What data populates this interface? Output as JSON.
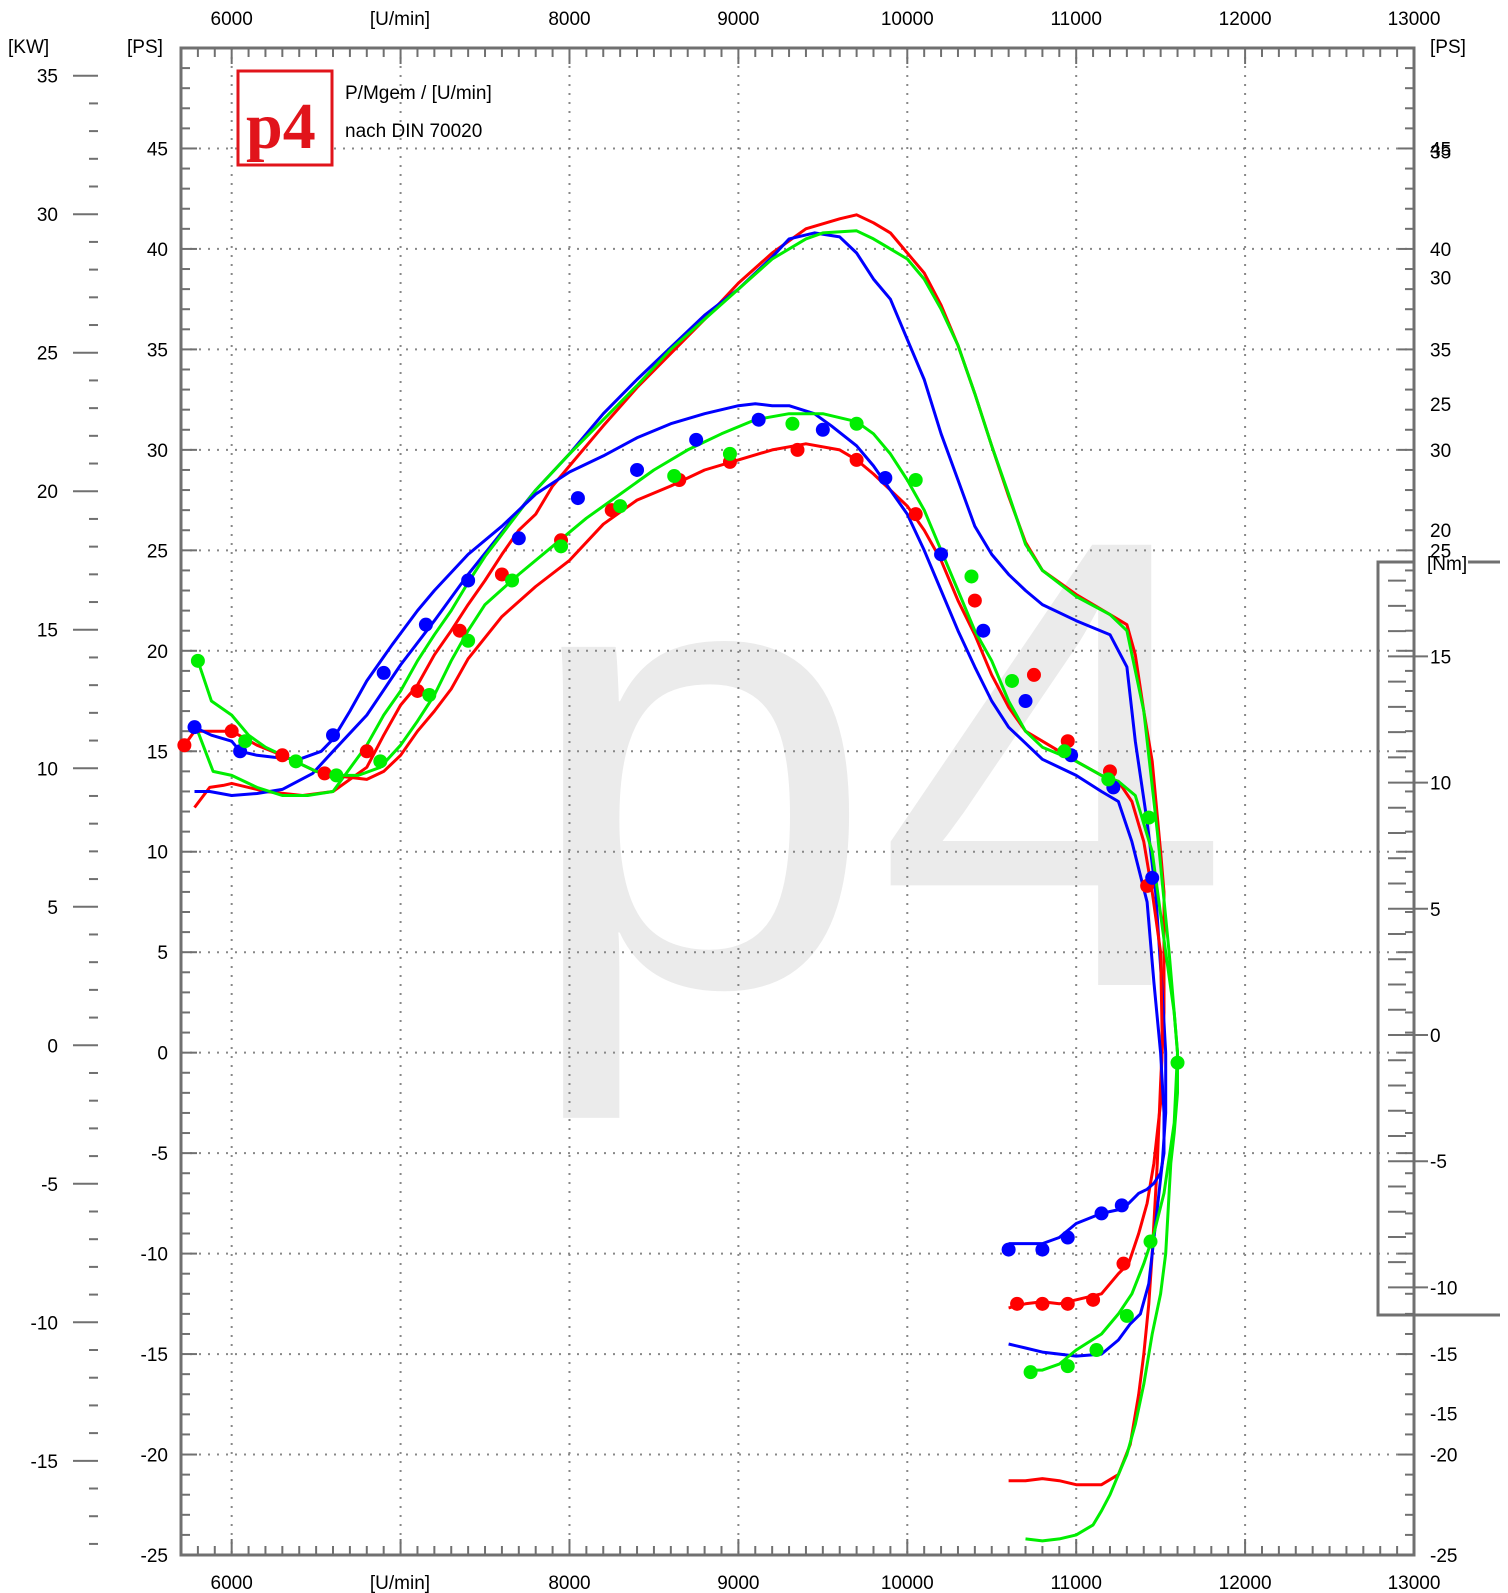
{
  "chart_data": {
    "type": "line",
    "title": "P/Mgem / [U/min]",
    "subtitle": "nach DIN 70020",
    "watermark": "p4",
    "logo": {
      "text": "p4",
      "color": "#e1141b"
    },
    "x_axis": {
      "label_top": "[U/min]",
      "label_bottom": "[U/min]",
      "range": [
        5700,
        13000
      ],
      "ticks": [
        6000,
        8000,
        9000,
        10000,
        11000,
        12000,
        13000
      ]
    },
    "y_axes": {
      "kw": {
        "label": "[KW]",
        "range": [
          -18.4,
          36
        ],
        "ticks": [
          35,
          30,
          25,
          20,
          15,
          10,
          5,
          0,
          -5,
          -10,
          -15
        ]
      },
      "ps_left": {
        "label": "[PS]",
        "range": [
          -25,
          50
        ],
        "ticks": [
          45,
          40,
          35,
          30,
          25,
          20,
          15,
          10,
          5,
          0,
          -5,
          -10,
          -15,
          -20,
          -25
        ]
      },
      "ps_right": {
        "label": "[PS]",
        "range": [
          -25,
          50
        ],
        "ticks": [
          45,
          40,
          35,
          30,
          25,
          20,
          15,
          10,
          5,
          0,
          -5,
          -10,
          -15,
          -20,
          -25
        ]
      },
      "nm": {
        "label": "[Nm]",
        "range": [
          -20.6,
          39.1
        ],
        "ticks": [
          35,
          30,
          25,
          20,
          15,
          10,
          5,
          0,
          -5,
          -10,
          -15
        ]
      }
    },
    "grid": true,
    "colors": {
      "red": "#ff0000",
      "blue": "#0000ff",
      "green": "#00ee00",
      "grid": "#888888",
      "frame": "#707070"
    },
    "series": [
      {
        "kind": "power",
        "color": "#ff0000",
        "x": [
          5780,
          5870,
          5950,
          6000,
          6200,
          6420,
          6600,
          6800,
          6900,
          7000,
          7100,
          7200,
          7300,
          7400,
          7500,
          7600,
          7700,
          7800,
          7900,
          8000,
          8200,
          8400,
          8600,
          8800,
          9000,
          9200,
          9400,
          9600,
          9700,
          9800,
          9900,
          10000,
          10100,
          10200,
          10300,
          10400,
          10500,
          10600,
          10700,
          10800,
          11000,
          11200,
          11300,
          11350,
          11400,
          11450,
          11500,
          11520,
          11520,
          11500,
          11480,
          11450,
          11430,
          11400,
          11370,
          11320,
          11250,
          11150,
          11000,
          10900,
          10800,
          10700,
          10600
        ],
        "y": [
          12.2,
          13.2,
          13.3,
          13.4,
          13.0,
          12.8,
          13.0,
          14.2,
          15.8,
          17.3,
          18.3,
          19.8,
          21.0,
          22.3,
          23.5,
          24.8,
          26.0,
          26.8,
          28.2,
          29.2,
          31.2,
          33.1,
          34.8,
          36.5,
          38.3,
          39.8,
          41.0,
          41.5,
          41.7,
          41.3,
          40.8,
          39.8,
          38.8,
          37.2,
          35.2,
          32.8,
          30.2,
          27.7,
          25.4,
          24.0,
          22.8,
          21.8,
          21.3,
          19.8,
          17.0,
          14.5,
          10.0,
          8.0,
          2.0,
          -1.5,
          -5.5,
          -10.0,
          -12.5,
          -15.0,
          -17.0,
          -19.5,
          -21.0,
          -21.5,
          -21.5,
          -21.3,
          -21.2,
          -21.3,
          -21.3
        ]
      },
      {
        "kind": "power",
        "color": "#0000ff",
        "x": [
          5780,
          5870,
          6000,
          6150,
          6300,
          6480,
          6600,
          6800,
          7000,
          7200,
          7400,
          7600,
          7800,
          8000,
          8200,
          8400,
          8600,
          8800,
          9000,
          9200,
          9300,
          9450,
          9600,
          9700,
          9800,
          9900,
          10000,
          10100,
          10200,
          10300,
          10400,
          10500,
          10600,
          10700,
          10800,
          11000,
          11200,
          11300,
          11350,
          11420,
          11470,
          11510,
          11530,
          11530,
          11510,
          11470,
          11430,
          11380,
          11320,
          11250,
          11150,
          11000,
          10900,
          10800,
          10700,
          10600
        ],
        "y": [
          13.0,
          13.0,
          12.8,
          12.9,
          13.1,
          13.9,
          15.0,
          16.8,
          19.3,
          21.5,
          23.8,
          25.9,
          28.0,
          29.8,
          31.8,
          33.5,
          35.1,
          36.7,
          38.0,
          39.6,
          40.5,
          40.8,
          40.6,
          39.8,
          38.5,
          37.5,
          35.5,
          33.5,
          30.8,
          28.5,
          26.2,
          24.8,
          23.8,
          23.0,
          22.3,
          21.5,
          20.8,
          19.2,
          15.5,
          11.5,
          8.0,
          3.0,
          0.0,
          -3.0,
          -5.5,
          -8.5,
          -11.5,
          -13.0,
          -13.5,
          -14.3,
          -15.0,
          -15.1,
          -15.0,
          -14.9,
          -14.7,
          -14.5
        ]
      },
      {
        "kind": "power",
        "color": "#00ee00",
        "x": [
          5790,
          5890,
          6000,
          6150,
          6300,
          6450,
          6600,
          6800,
          6900,
          7000,
          7100,
          7200,
          7300,
          7400,
          7500,
          7600,
          7800,
          8000,
          8200,
          8400,
          8600,
          8800,
          9000,
          9200,
          9400,
          9500,
          9700,
          9800,
          9900,
          10000,
          10100,
          10200,
          10300,
          10400,
          10500,
          10600,
          10700,
          10800,
          11000,
          11200,
          11300,
          11400,
          11480,
          11550,
          11580,
          11600,
          11600,
          11580,
          11560,
          11530,
          11500,
          11450,
          11400,
          11350,
          11300,
          11250,
          11200,
          11150,
          11100,
          11000,
          10900,
          10800,
          10700
        ],
        "y": [
          16.2,
          14.0,
          13.8,
          13.2,
          12.8,
          12.8,
          13.0,
          15.3,
          16.8,
          18.0,
          19.5,
          20.8,
          22.0,
          23.4,
          24.7,
          25.8,
          28.0,
          29.8,
          31.5,
          33.2,
          35.0,
          36.5,
          38.0,
          39.5,
          40.5,
          40.8,
          40.9,
          40.5,
          40.0,
          39.5,
          38.5,
          37.0,
          35.2,
          32.8,
          30.2,
          27.8,
          25.3,
          24.0,
          22.7,
          21.8,
          21.0,
          17.0,
          11.0,
          5.0,
          2.0,
          0.0,
          -2.0,
          -4.0,
          -5.5,
          -10.0,
          -12.0,
          -14.0,
          -16.5,
          -18.5,
          -20.0,
          -21.0,
          -22.0,
          -22.8,
          -23.5,
          -24.0,
          -24.2,
          -24.3,
          -24.2
        ]
      },
      {
        "kind": "torque",
        "color": "#ff0000",
        "x": [
          5720,
          5780,
          6000,
          6150,
          6300,
          6500,
          6600,
          6800,
          6900,
          7000,
          7100,
          7200,
          7300,
          7400,
          7600,
          7800,
          8000,
          8200,
          8400,
          8600,
          8800,
          9000,
          9200,
          9400,
          9600,
          9700,
          9800,
          9900,
          10000,
          10100,
          10200,
          10300,
          10400,
          10500,
          10600,
          10700,
          10800,
          11000,
          11150,
          11250,
          11330,
          11400,
          11450,
          11500,
          11510,
          11500,
          11460,
          11420,
          11370,
          11310,
          11250,
          11150,
          11000,
          10900,
          10800,
          10700,
          10600
        ],
        "y": [
          15.3,
          16.0,
          16.0,
          15.3,
          14.8,
          14.0,
          13.8,
          13.6,
          14.0,
          14.8,
          16.0,
          17.0,
          18.1,
          19.6,
          21.7,
          23.2,
          24.5,
          26.3,
          27.5,
          28.2,
          29.0,
          29.5,
          30.0,
          30.3,
          30.0,
          29.5,
          28.8,
          28.0,
          27.2,
          26.0,
          24.5,
          22.5,
          20.8,
          18.8,
          17.2,
          16.0,
          15.5,
          14.5,
          13.8,
          13.5,
          12.5,
          10.5,
          8.0,
          5.0,
          0.5,
          -2.5,
          -5.5,
          -7.5,
          -9.0,
          -10.5,
          -11.0,
          -12.0,
          -12.3,
          -12.5,
          -12.4,
          -12.5,
          -12.7
        ]
      },
      {
        "kind": "torque",
        "color": "#0000ff",
        "x": [
          5780,
          5880,
          6000,
          6050,
          6150,
          6250,
          6400,
          6530,
          6600,
          6700,
          6800,
          6950,
          7100,
          7200,
          7400,
          7600,
          7800,
          8000,
          8200,
          8400,
          8600,
          8800,
          9000,
          9100,
          9200,
          9300,
          9450,
          9550,
          9700,
          9800,
          9900,
          10000,
          10100,
          10200,
          10300,
          10400,
          10500,
          10600,
          10700,
          10800,
          11000,
          11150,
          11250,
          11330,
          11420,
          11460,
          11500,
          11520,
          11520,
          11500,
          11460,
          11420,
          11370,
          11310,
          11260,
          11150,
          11000,
          10900,
          10800,
          10700,
          10600
        ],
        "y": [
          16.2,
          15.8,
          15.5,
          15.0,
          14.8,
          14.7,
          14.6,
          15.0,
          15.6,
          17.0,
          18.5,
          20.3,
          22.0,
          23.0,
          24.8,
          26.2,
          27.8,
          28.9,
          29.7,
          30.6,
          31.3,
          31.8,
          32.2,
          32.3,
          32.2,
          32.2,
          31.8,
          31.2,
          30.2,
          29.2,
          28.0,
          26.8,
          25.0,
          23.0,
          21.0,
          19.2,
          17.5,
          16.2,
          15.4,
          14.6,
          13.8,
          13.0,
          12.5,
          10.5,
          7.5,
          3.5,
          0.0,
          -3.0,
          -5.0,
          -6.0,
          -6.5,
          -6.8,
          -7.0,
          -7.5,
          -7.8,
          -8.0,
          -8.5,
          -9.2,
          -9.5,
          -9.5,
          -9.5
        ]
      },
      {
        "kind": "torque",
        "color": "#00ee00",
        "x": [
          5800,
          5880,
          6000,
          6100,
          6200,
          6350,
          6500,
          6640,
          6750,
          6880,
          7000,
          7100,
          7200,
          7300,
          7400,
          7500,
          7700,
          7900,
          8100,
          8300,
          8500,
          8700,
          8900,
          9100,
          9300,
          9500,
          9700,
          9800,
          9900,
          10000,
          10100,
          10200,
          10300,
          10400,
          10500,
          10600,
          10700,
          10800,
          11000,
          11150,
          11250,
          11350,
          11450,
          11530,
          11580,
          11600,
          11580,
          11520,
          11460,
          11400,
          11330,
          11250,
          11150,
          11000,
          10900,
          10800,
          10700
        ],
        "y": [
          19.5,
          17.5,
          16.8,
          15.8,
          15.2,
          14.6,
          14.0,
          13.8,
          13.8,
          14.2,
          15.3,
          16.5,
          17.8,
          19.5,
          21.0,
          22.3,
          23.8,
          25.2,
          26.6,
          27.8,
          29.0,
          30.0,
          30.8,
          31.5,
          31.8,
          31.8,
          31.4,
          30.8,
          29.8,
          28.5,
          27.0,
          25.0,
          23.0,
          21.0,
          19.5,
          17.5,
          16.0,
          15.2,
          14.5,
          13.8,
          13.5,
          12.8,
          10.0,
          5.0,
          2.0,
          0.0,
          -3.5,
          -7.0,
          -9.0,
          -10.5,
          -12.0,
          -13.0,
          -14.0,
          -14.8,
          -15.5,
          -15.8,
          -15.8
        ]
      }
    ],
    "markers": [
      {
        "color": "#ff0000",
        "axis": "torque",
        "x": [
          5720,
          6000,
          6300,
          6550,
          6800,
          7100,
          7350,
          7600,
          7950,
          8250,
          8650,
          8950,
          9350,
          9700,
          10050,
          10400,
          10750,
          10950,
          11200,
          11420,
          11100,
          10950,
          10800,
          10650,
          11280
        ],
        "y": [
          15.3,
          16.0,
          14.8,
          13.9,
          15.0,
          18.0,
          21.0,
          23.8,
          25.5,
          27.0,
          28.5,
          29.4,
          30.0,
          29.5,
          26.8,
          22.5,
          18.8,
          15.5,
          14.0,
          8.3,
          -12.3,
          -12.5,
          -12.5,
          -12.5,
          -10.5
        ]
      },
      {
        "color": "#0000ff",
        "axis": "torque",
        "x": [
          5780,
          6050,
          6600,
          6900,
          7150,
          7400,
          7700,
          8050,
          8400,
          8750,
          9120,
          9500,
          9870,
          10200,
          10450,
          10700,
          10970,
          11220,
          11450,
          10600,
          10800,
          10950,
          11150,
          11270
        ],
        "y": [
          16.2,
          15.0,
          15.8,
          18.9,
          21.3,
          23.5,
          25.6,
          27.6,
          29.0,
          30.5,
          31.5,
          31.0,
          28.6,
          24.8,
          21.0,
          17.5,
          14.8,
          13.2,
          8.7,
          -9.8,
          -9.8,
          -9.2,
          -8.0,
          -7.6
        ]
      },
      {
        "color": "#00ee00",
        "axis": "torque",
        "x": [
          5800,
          6080,
          6380,
          6620,
          6880,
          7170,
          7400,
          7660,
          7950,
          8300,
          8620,
          8950,
          9320,
          9700,
          10050,
          10380,
          10620,
          10930,
          11190,
          11430,
          11600,
          10730,
          10950,
          11120,
          11300,
          11440
        ],
        "y": [
          19.5,
          15.5,
          14.5,
          13.8,
          14.5,
          17.8,
          20.5,
          23.5,
          25.2,
          27.2,
          28.7,
          29.8,
          31.3,
          31.3,
          28.5,
          23.7,
          18.5,
          15.0,
          13.6,
          11.7,
          -0.5,
          -15.9,
          -15.6,
          -14.8,
          -13.1,
          -9.4
        ]
      }
    ]
  }
}
